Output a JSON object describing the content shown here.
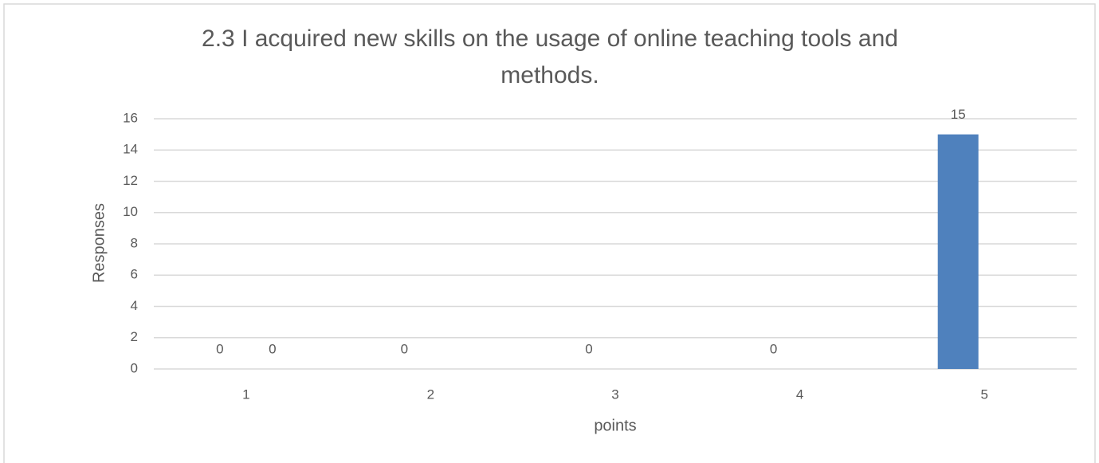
{
  "chart_data": {
    "type": "bar",
    "title": [
      "2.3 I acquired new skills on the usage of online teaching tools and",
      "methods."
    ],
    "x_label": "points",
    "y_label": "Responses",
    "categories": [
      "1",
      "2",
      "3",
      "4",
      "5"
    ],
    "series": [
      {
        "color": "#4f81bd",
        "values": [
          0,
          0,
          0,
          0,
          15
        ]
      },
      {
        "color": "#4f81bd",
        "values": [
          0,
          null,
          null,
          null,
          null
        ]
      }
    ],
    "ylim": [
      0,
      16
    ],
    "yticks": [
      0,
      2,
      4,
      6,
      8,
      10,
      12,
      14,
      16
    ],
    "grid": true
  }
}
